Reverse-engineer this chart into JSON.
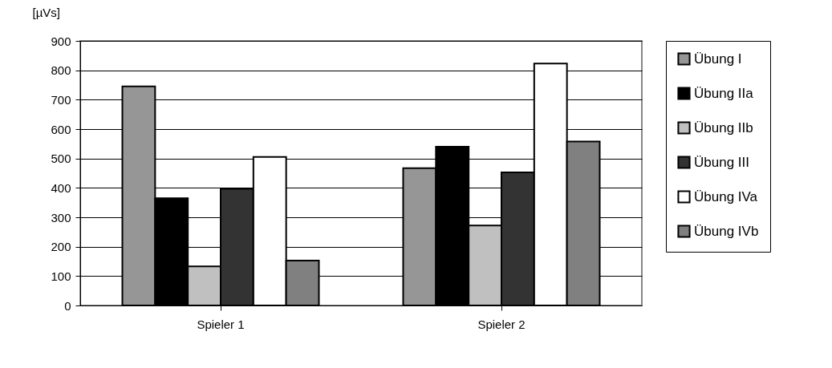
{
  "chart_data": {
    "type": "bar",
    "ylabel": "[µVs]",
    "categories": [
      "Spieler 1",
      "Spieler 2"
    ],
    "series": [
      {
        "name": "Übung I",
        "color": "#969696",
        "values": [
          745,
          467
        ]
      },
      {
        "name": "Übung IIa",
        "color": "#000000",
        "values": [
          365,
          540
        ]
      },
      {
        "name": "Übung IIb",
        "color": "#c0c0c0",
        "values": [
          133,
          272
        ]
      },
      {
        "name": "Übung III",
        "color": "#333333",
        "values": [
          397,
          453
        ]
      },
      {
        "name": "Übung IVa",
        "color": "#ffffff",
        "values": [
          505,
          823
        ]
      },
      {
        "name": "Übung IVb",
        "color": "#808080",
        "values": [
          153,
          558
        ]
      }
    ],
    "ylim": [
      0,
      900
    ],
    "yticks": [
      0,
      100,
      200,
      300,
      400,
      500,
      600,
      700,
      800,
      900
    ],
    "grid": "y",
    "legend": "right"
  }
}
